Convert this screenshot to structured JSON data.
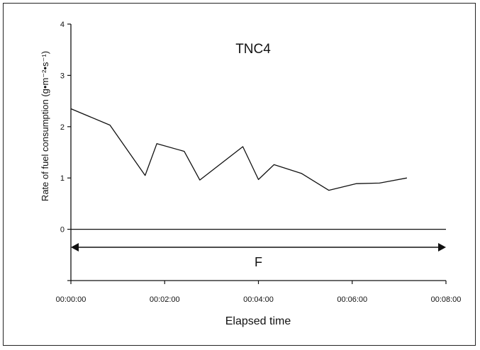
{
  "chart_data": {
    "type": "line",
    "title": "TNC4",
    "xlabel": "Elapsed time",
    "ylabel": "Rate of fuel consumption (g•m⁻²•s⁻¹)",
    "x_ticks": [
      "00:00:00",
      "00:02:00",
      "00:04:00",
      "00:06:00",
      "00:08:00"
    ],
    "y_ticks": [
      "0",
      "1",
      "2",
      "3",
      "4"
    ],
    "xlim": [
      "00:00:00",
      "00:08:00"
    ],
    "ylim": [
      -1,
      4
    ],
    "grid": false,
    "series": [
      {
        "x": [
          "00:00:00",
          "00:00:50",
          "00:01:35",
          "00:01:50",
          "00:02:25",
          "00:02:45",
          "00:03:40",
          "00:04:00",
          "00:04:20",
          "00:04:55",
          "00:05:30",
          "00:06:05",
          "00:06:35",
          "00:07:10"
        ],
        "values": [
          2.35,
          2.03,
          1.05,
          1.67,
          1.52,
          0.96,
          1.61,
          0.97,
          1.26,
          1.09,
          0.76,
          0.89,
          0.9,
          1.0
        ]
      }
    ],
    "annotations": [
      {
        "text": "F",
        "type": "span-arrow",
        "from": "00:00:00",
        "to": "00:08:00",
        "y": -0.35
      }
    ],
    "colors": {
      "line": "#111111",
      "axis": "#111111"
    }
  }
}
